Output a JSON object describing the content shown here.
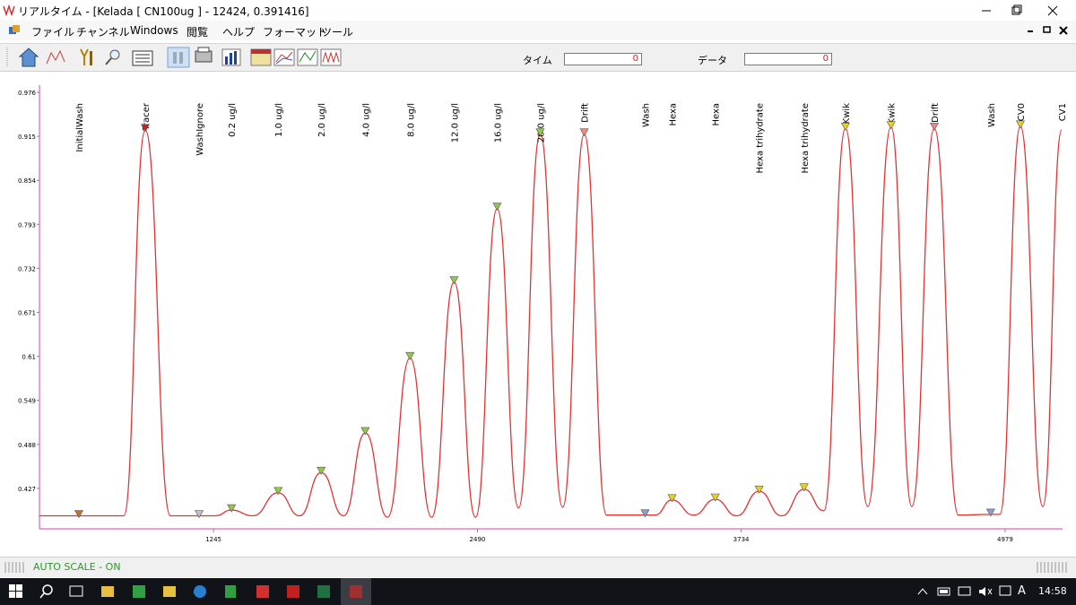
{
  "window": {
    "title": "リアルタイム - [Kelada [ CN100ug ] - 12424, 0.391416]"
  },
  "menu": [
    "ファイル",
    "チャンネル",
    "Windows",
    "閲覧",
    "ヘルプ",
    "フォーマット",
    "ツール"
  ],
  "toolbar": {
    "time_label": "タイム",
    "time_value": "0",
    "data_label": "データ",
    "data_value": "0"
  },
  "chart_data": {
    "type": "line",
    "color": "#e03434",
    "axis_color": "#e0409c",
    "grid": false,
    "xlim": [
      424,
      5250
    ],
    "xticks": [
      1245,
      2490,
      3734,
      4979
    ],
    "ylim": [
      0.371,
      0.976
    ],
    "yticks": [
      0.976,
      0.915,
      0.854,
      0.793,
      0.732,
      0.671,
      0.61,
      0.549,
      0.488,
      0.427
    ],
    "x": [
      424,
      610,
      822,
      923,
      1042,
      1177,
      1253,
      1330,
      1431,
      1550,
      1651,
      1753,
      1859,
      1961,
      2066,
      2172,
      2274,
      2380,
      2481,
      2583,
      2684,
      2786,
      2892,
      2994,
      3099,
      3281,
      3328,
      3408,
      3510,
      3612,
      3713,
      3819,
      3925,
      4031,
      4124,
      4226,
      4331,
      4441,
      4539,
      4645,
      4759,
      4911,
      4954,
      5051,
      5157,
      5246
    ],
    "values": [
      0.389,
      0.389,
      0.389,
      0.924,
      0.389,
      0.389,
      0.389,
      0.397,
      0.389,
      0.421,
      0.389,
      0.449,
      0.389,
      0.504,
      0.387,
      0.608,
      0.387,
      0.713,
      0.387,
      0.815,
      0.4,
      0.918,
      0.401,
      0.918,
      0.39,
      0.39,
      0.39,
      0.411,
      0.39,
      0.412,
      0.389,
      0.423,
      0.389,
      0.426,
      0.396,
      0.926,
      0.402,
      0.928,
      0.402,
      0.926,
      0.39,
      0.391,
      0.391,
      0.929,
      0.402,
      0.924
    ],
    "annotations": [
      {
        "label": "InitialWash",
        "x": 610,
        "y": 0.389,
        "color": "#c0703a"
      },
      {
        "label": "Tracer",
        "x": 923,
        "y": 0.924,
        "color": "#cc2020"
      },
      {
        "label": "WashIgnore",
        "x": 1177,
        "y": 0.389,
        "color": "#c0c0cc"
      },
      {
        "label": "0.2 ug/l",
        "x": 1330,
        "y": 0.397,
        "color": "#92c84a"
      },
      {
        "label": "1.0 ug/l",
        "x": 1550,
        "y": 0.421,
        "color": "#92c84a"
      },
      {
        "label": "2.0 ug/l",
        "x": 1753,
        "y": 0.449,
        "color": "#92c84a"
      },
      {
        "label": "4.0 ug/l",
        "x": 1961,
        "y": 0.504,
        "color": "#92c84a"
      },
      {
        "label": "8.0 ug/l",
        "x": 2172,
        "y": 0.608,
        "color": "#92c84a"
      },
      {
        "label": "12.0 ug/l",
        "x": 2380,
        "y": 0.713,
        "color": "#92c84a"
      },
      {
        "label": "16.0 ug/l",
        "x": 2583,
        "y": 0.815,
        "color": "#92c84a"
      },
      {
        "label": "20.0 ug/l",
        "x": 2786,
        "y": 0.918,
        "color": "#92c84a"
      },
      {
        "label": "Drift",
        "x": 2994,
        "y": 0.918,
        "color": "#e88a84"
      },
      {
        "label": "Wash",
        "x": 3281,
        "y": 0.39,
        "color": "#8c9ccc"
      },
      {
        "label": "Hexa",
        "x": 3408,
        "y": 0.411,
        "color": "#e8d024"
      },
      {
        "label": "Hexa",
        "x": 3612,
        "y": 0.412,
        "color": "#e8d024"
      },
      {
        "label": "Hexa trihydrate",
        "x": 3819,
        "y": 0.423,
        "color": "#e8d024"
      },
      {
        "label": "Hexa trihydrate",
        "x": 4031,
        "y": 0.426,
        "color": "#e8d024"
      },
      {
        "label": "Kwik",
        "x": 4226,
        "y": 0.926,
        "color": "#e8d024"
      },
      {
        "label": "Kwik",
        "x": 4441,
        "y": 0.928,
        "color": "#e8d024"
      },
      {
        "label": "Drift",
        "x": 4645,
        "y": 0.926,
        "color": "#e88a84"
      },
      {
        "label": "Wash",
        "x": 4911,
        "y": 0.391,
        "color": "#8c9ccc"
      },
      {
        "label": "CV0",
        "x": 5051,
        "y": 0.929,
        "color": "#e8d024"
      },
      {
        "label": "CV1",
        "x": 5246
      }
    ]
  },
  "status": {
    "text": "AUTO SCALE - ON"
  },
  "taskbar": {
    "ime": "A",
    "clock": "14:58"
  }
}
